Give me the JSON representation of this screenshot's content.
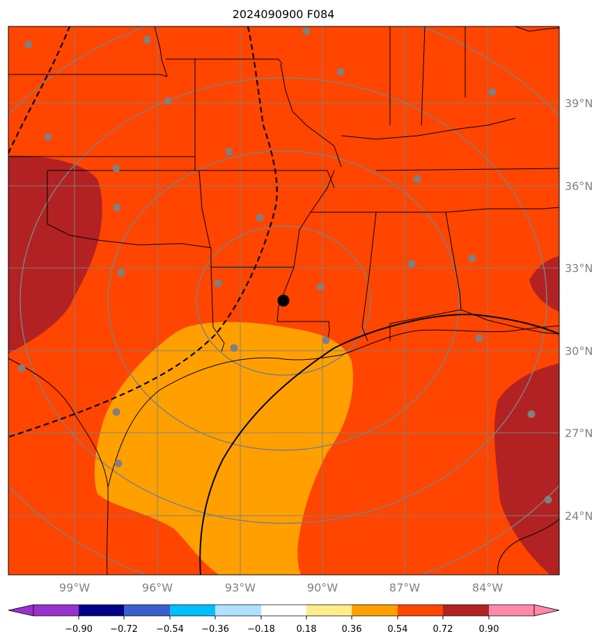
{
  "title": "2024090900 F084",
  "lat_labels": [
    "39°N",
    "36°N",
    "33°N",
    "30°N",
    "27°N",
    "24°N"
  ],
  "lon_labels": [
    "99°W",
    "96°W",
    "93°W",
    "90°W",
    "87°W",
    "84°W"
  ],
  "colorbar": {
    "colors": [
      "#9932cc",
      "#00008b",
      "#3a5fcd",
      "#00bfff",
      "#b0e2ff",
      "#ffffff",
      "#ffec8b",
      "#ffa000",
      "#ff4500",
      "#b22222",
      "#ff88aa"
    ],
    "tick_labels": [
      "−0.90",
      "−0.72",
      "−0.54",
      "−0.36",
      "−0.18",
      "0.18",
      "0.36",
      "0.54",
      "0.72",
      "0.90"
    ]
  },
  "field_colors": {
    "background": "#ff4500",
    "high": "#b22222",
    "mid": "#ffa000",
    "grid": "#808080",
    "station": "#808080",
    "center": "#000000"
  }
}
